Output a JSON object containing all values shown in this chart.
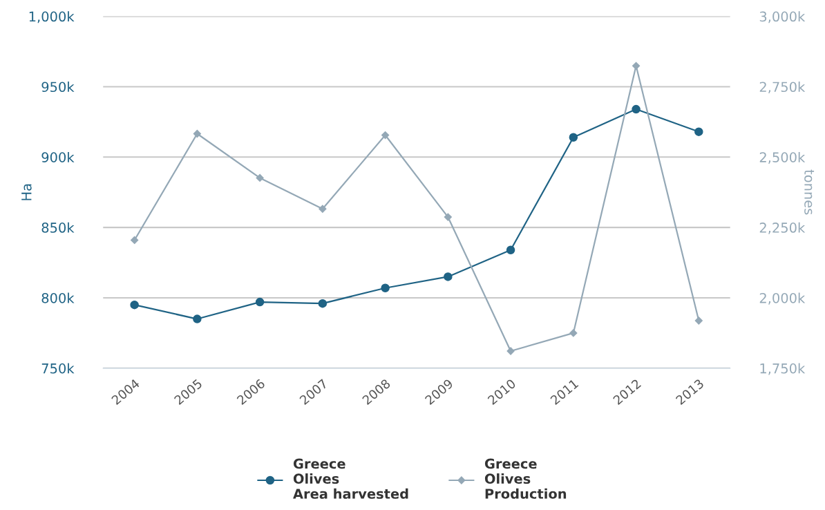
{
  "chart_data": {
    "type": "line",
    "categories": [
      "2004",
      "2005",
      "2006",
      "2007",
      "2008",
      "2009",
      "2010",
      "2011",
      "2012",
      "2013"
    ],
    "series": [
      {
        "name": "Greece\nOlives\nArea harvested",
        "color": "#1f6385",
        "marker": "circle",
        "values": [
          795000,
          785000,
          797000,
          796000,
          807000,
          815000,
          834000,
          914000,
          934000,
          918000
        ]
      },
      {
        "name": "Greece\nOlives\nProduction",
        "color": "#94a8b6",
        "marker": "diamond",
        "axis": "y2",
        "values": [
          2205000,
          2583000,
          2426000,
          2316000,
          2578000,
          2287000,
          1811000,
          1875000,
          2824000,
          1919000
        ]
      }
    ],
    "ylabel": "Ha",
    "y2label": "tonnes",
    "ylim": [
      750000,
      1000000
    ],
    "yticks": [
      {
        "value": 750000,
        "label": "750k"
      },
      {
        "value": 800000,
        "label": "800k"
      },
      {
        "value": 850000,
        "label": "850k"
      },
      {
        "value": 900000,
        "label": "900k"
      },
      {
        "value": 950000,
        "label": "950k"
      },
      {
        "value": 1000000,
        "label": "1,000k"
      }
    ],
    "y2lim": [
      1750000,
      3000000
    ],
    "y2ticks": [
      {
        "value": 1750000,
        "label": "1,750k"
      },
      {
        "value": 2000000,
        "label": "2,000k"
      },
      {
        "value": 2250000,
        "label": "2,250k"
      },
      {
        "value": 2500000,
        "label": "2,500k"
      },
      {
        "value": 2750000,
        "label": "2,750k"
      },
      {
        "value": 3000000,
        "label": "3,000k"
      }
    ],
    "grid": "y",
    "legend": "bottom",
    "line_style": "solid"
  }
}
